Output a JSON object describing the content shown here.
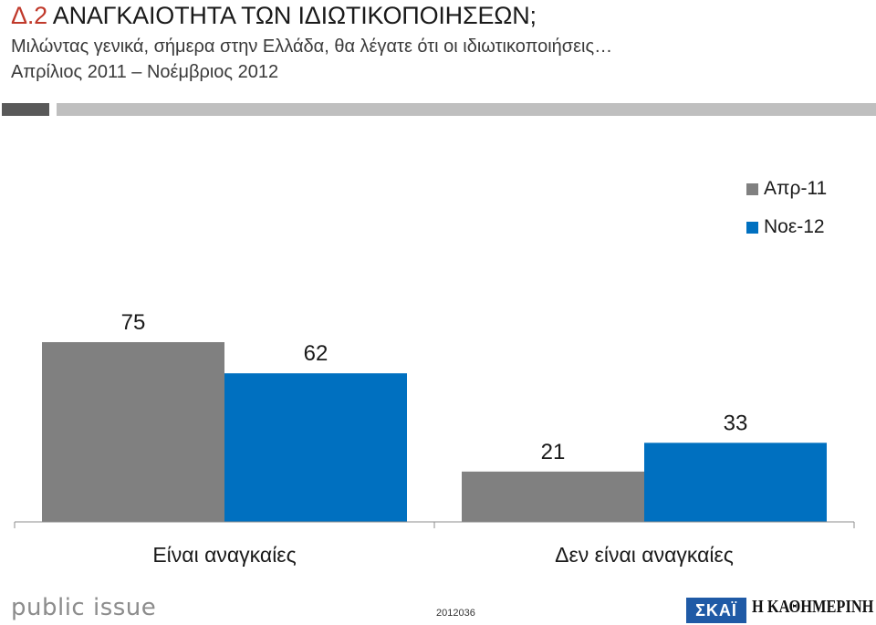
{
  "header": {
    "code": "Δ.2",
    "title": "ΑΝΑΓΚΑΙΟΤΗΤΑ ΤΩΝ ΙΔΙΩΤΙΚΟΠΟΙΗΣΕΩΝ;",
    "subtitle": "Μιλώντας γενικά, σήμερα στην Ελλάδα, θα λέγατε ότι οι ιδιωτικοποιήσεις…",
    "period": "Απρίλιος 2011 – Νοέμβριος 2012"
  },
  "colors": {
    "apr11": "#808080",
    "nov12": "#0070c0",
    "rule_dark": "#595959",
    "rule_light": "#bfbfbf"
  },
  "chart_data": {
    "type": "bar",
    "categories": [
      "Είναι αναγκαίες",
      "Δεν είναι αναγκαίες"
    ],
    "series": [
      {
        "name": "Απρ-11",
        "values": [
          75,
          21
        ]
      },
      {
        "name": "Νοε-12",
        "values": [
          62,
          33
        ]
      }
    ],
    "ylim": [
      0,
      85
    ],
    "grid": false,
    "legend": "top-right"
  },
  "footer": {
    "brand": "public issue",
    "code": "2012036",
    "logo_left": "ΣΚΑΪ",
    "logo_right": "Η ΚΑΘΗΜΕΡΙΝΗ"
  }
}
